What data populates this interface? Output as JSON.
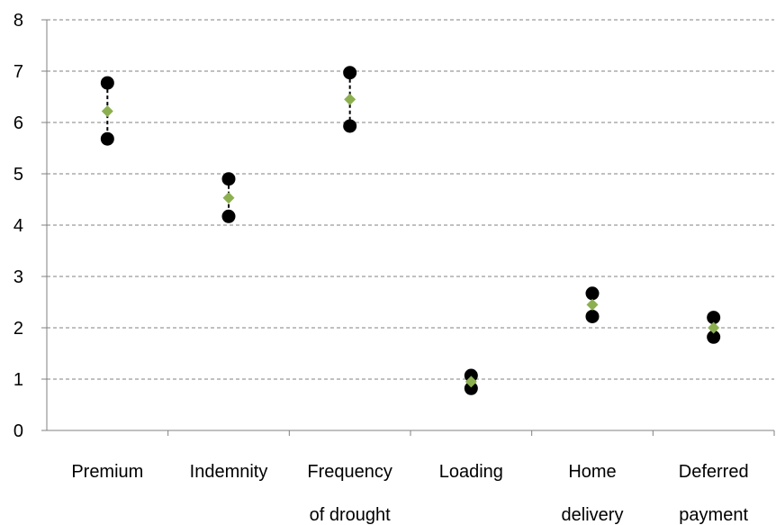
{
  "chart_data": {
    "type": "scatter",
    "title": "",
    "xlabel": "",
    "ylabel": "",
    "ylim": [
      0,
      8
    ],
    "yticks": [
      "0",
      "1",
      "2",
      "3",
      "4",
      "5",
      "6",
      "7",
      "8"
    ],
    "grid": "horizontal dashed",
    "legend": "none",
    "categories": [
      [
        "Premium"
      ],
      [
        "Indemnity"
      ],
      [
        "Frequency",
        "of drought"
      ],
      [
        "Loading"
      ],
      [
        "Home",
        "delivery"
      ],
      [
        "Deferred",
        "payment"
      ]
    ],
    "series": [
      {
        "marker": "circle",
        "color": "#000000",
        "role": "upper",
        "values": [
          6.77,
          4.9,
          6.97,
          1.07,
          2.67,
          2.2
        ]
      },
      {
        "marker": "diamond",
        "color": "#8CB04F",
        "role": "mean",
        "values": [
          6.22,
          4.53,
          6.45,
          0.95,
          2.45,
          2.0
        ]
      },
      {
        "marker": "circle",
        "color": "#000000",
        "role": "lower",
        "values": [
          5.68,
          4.17,
          5.93,
          0.82,
          2.22,
          1.82
        ]
      }
    ],
    "range_line": {
      "style": "dashed",
      "color": "#000000"
    }
  }
}
